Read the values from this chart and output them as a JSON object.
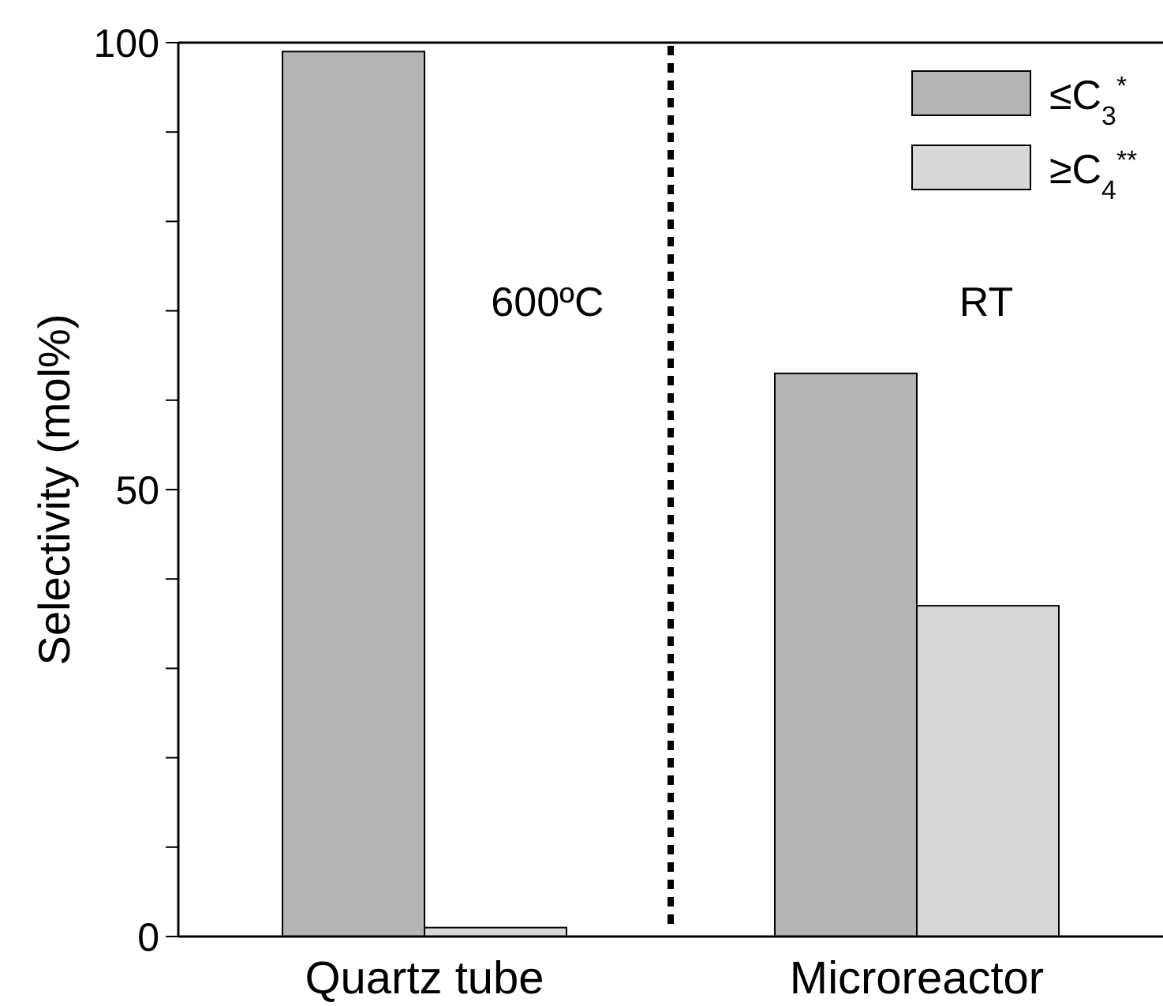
{
  "chart_data": {
    "type": "bar",
    "ylabel": "Selectivity (mol%)",
    "categories": [
      "Quartz tube",
      "Microreactor"
    ],
    "series": [
      {
        "name": "≤C$_{3}$$^{*}$",
        "color": "#b4b4b4",
        "values": [
          99,
          63
        ]
      },
      {
        "name": "≥C$_{4}$$^{**}$",
        "color": "#d8d8d8",
        "values": [
          1,
          37
        ]
      }
    ],
    "ylim": [
      0,
      100
    ],
    "yticks": [
      0,
      {
        "value": 10,
        "label": null
      },
      {
        "value": 20,
        "label": null
      },
      {
        "value": 30,
        "label": null
      },
      {
        "value": 40,
        "label": null
      },
      50,
      {
        "value": 60,
        "label": null
      },
      {
        "value": 70,
        "label": null
      },
      {
        "value": 80,
        "label": null
      },
      {
        "value": 90,
        "label": null
      },
      100
    ],
    "annotations": [
      "600ºC",
      "RT"
    ],
    "legend": "top right",
    "grid": false
  }
}
